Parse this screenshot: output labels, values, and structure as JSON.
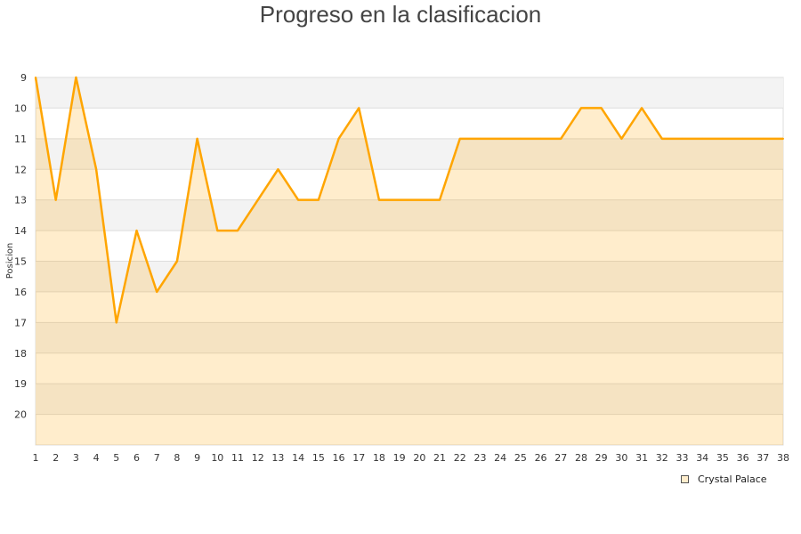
{
  "chart_data": {
    "type": "area",
    "title": "Progreso en la clasificacion",
    "xlabel": "",
    "ylabel": "Posicion",
    "x": [
      1,
      2,
      3,
      4,
      5,
      6,
      7,
      8,
      9,
      10,
      11,
      12,
      13,
      14,
      15,
      16,
      17,
      18,
      19,
      20,
      21,
      22,
      23,
      24,
      25,
      26,
      27,
      28,
      29,
      30,
      31,
      32,
      33,
      34,
      35,
      36,
      37,
      38
    ],
    "series": [
      {
        "name": "Crystal Palace",
        "values": [
          9,
          13,
          9,
          12,
          17,
          14,
          16,
          15,
          11,
          14,
          14,
          13,
          12,
          13,
          13,
          11,
          10,
          13,
          13,
          13,
          13,
          11,
          11,
          11,
          11,
          11,
          11,
          10,
          10,
          11,
          10,
          11,
          11,
          11,
          11,
          11,
          11,
          11
        ]
      }
    ],
    "ylim": [
      9,
      21
    ],
    "y_inverted": true,
    "yticks": [
      9,
      10,
      11,
      12,
      13,
      14,
      15,
      16,
      17,
      18,
      19,
      20
    ],
    "xlim": [
      1,
      38
    ],
    "grid": true,
    "legend": "bottom-right",
    "colors": {
      "line": "#ffa500",
      "fill": "#ffa500",
      "band": "#f3f3f3"
    }
  }
}
